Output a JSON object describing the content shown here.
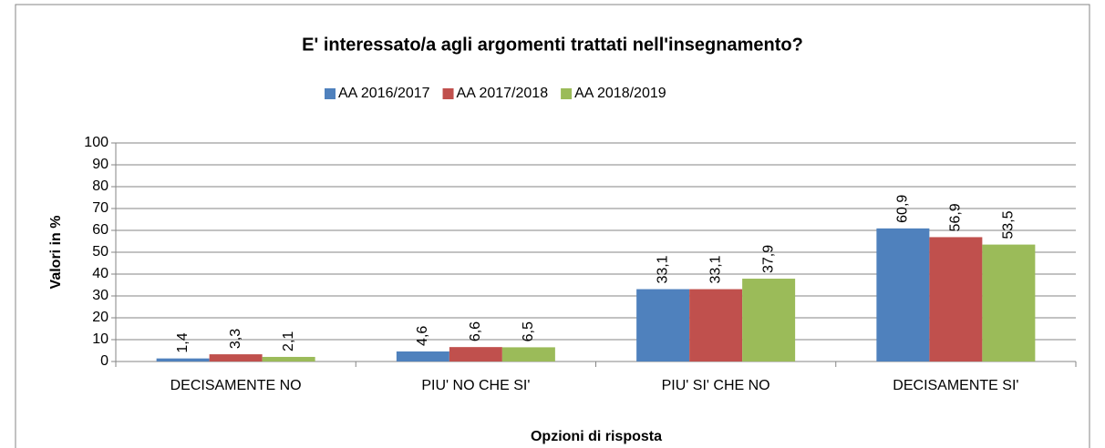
{
  "chart_data": {
    "type": "bar",
    "title": "E' interessato/a agli argomenti trattati nell'insegnamento?",
    "x_label": "Opzioni di risposta",
    "y_label": "Valori in %",
    "categories": [
      "DECISAMENTE NO",
      "PIU' NO CHE SI'",
      "PIU' SI' CHE NO",
      "DECISAMENTE SI'"
    ],
    "series": [
      {
        "name": "AA 2016/2017",
        "color": "#4f81bd",
        "values": [
          1.4,
          4.6,
          33.1,
          60.9
        ],
        "value_labels": [
          "1,4",
          "4,6",
          "33,1",
          "60,9"
        ]
      },
      {
        "name": "AA 2017/2018",
        "color": "#c0504d",
        "values": [
          3.3,
          6.6,
          33.1,
          56.9
        ],
        "value_labels": [
          "3,3",
          "6,6",
          "33,1",
          "56,9"
        ]
      },
      {
        "name": "AA 2018/2019",
        "color": "#9bbb59",
        "values": [
          2.1,
          6.5,
          37.9,
          53.5
        ],
        "value_labels": [
          "2,1",
          "6,5",
          "37,9",
          "53,5"
        ]
      }
    ],
    "ylim": [
      0,
      100
    ],
    "yticks": [
      0,
      10,
      20,
      30,
      40,
      50,
      60,
      70,
      80,
      90,
      100
    ],
    "grid": true,
    "legend": "top"
  }
}
